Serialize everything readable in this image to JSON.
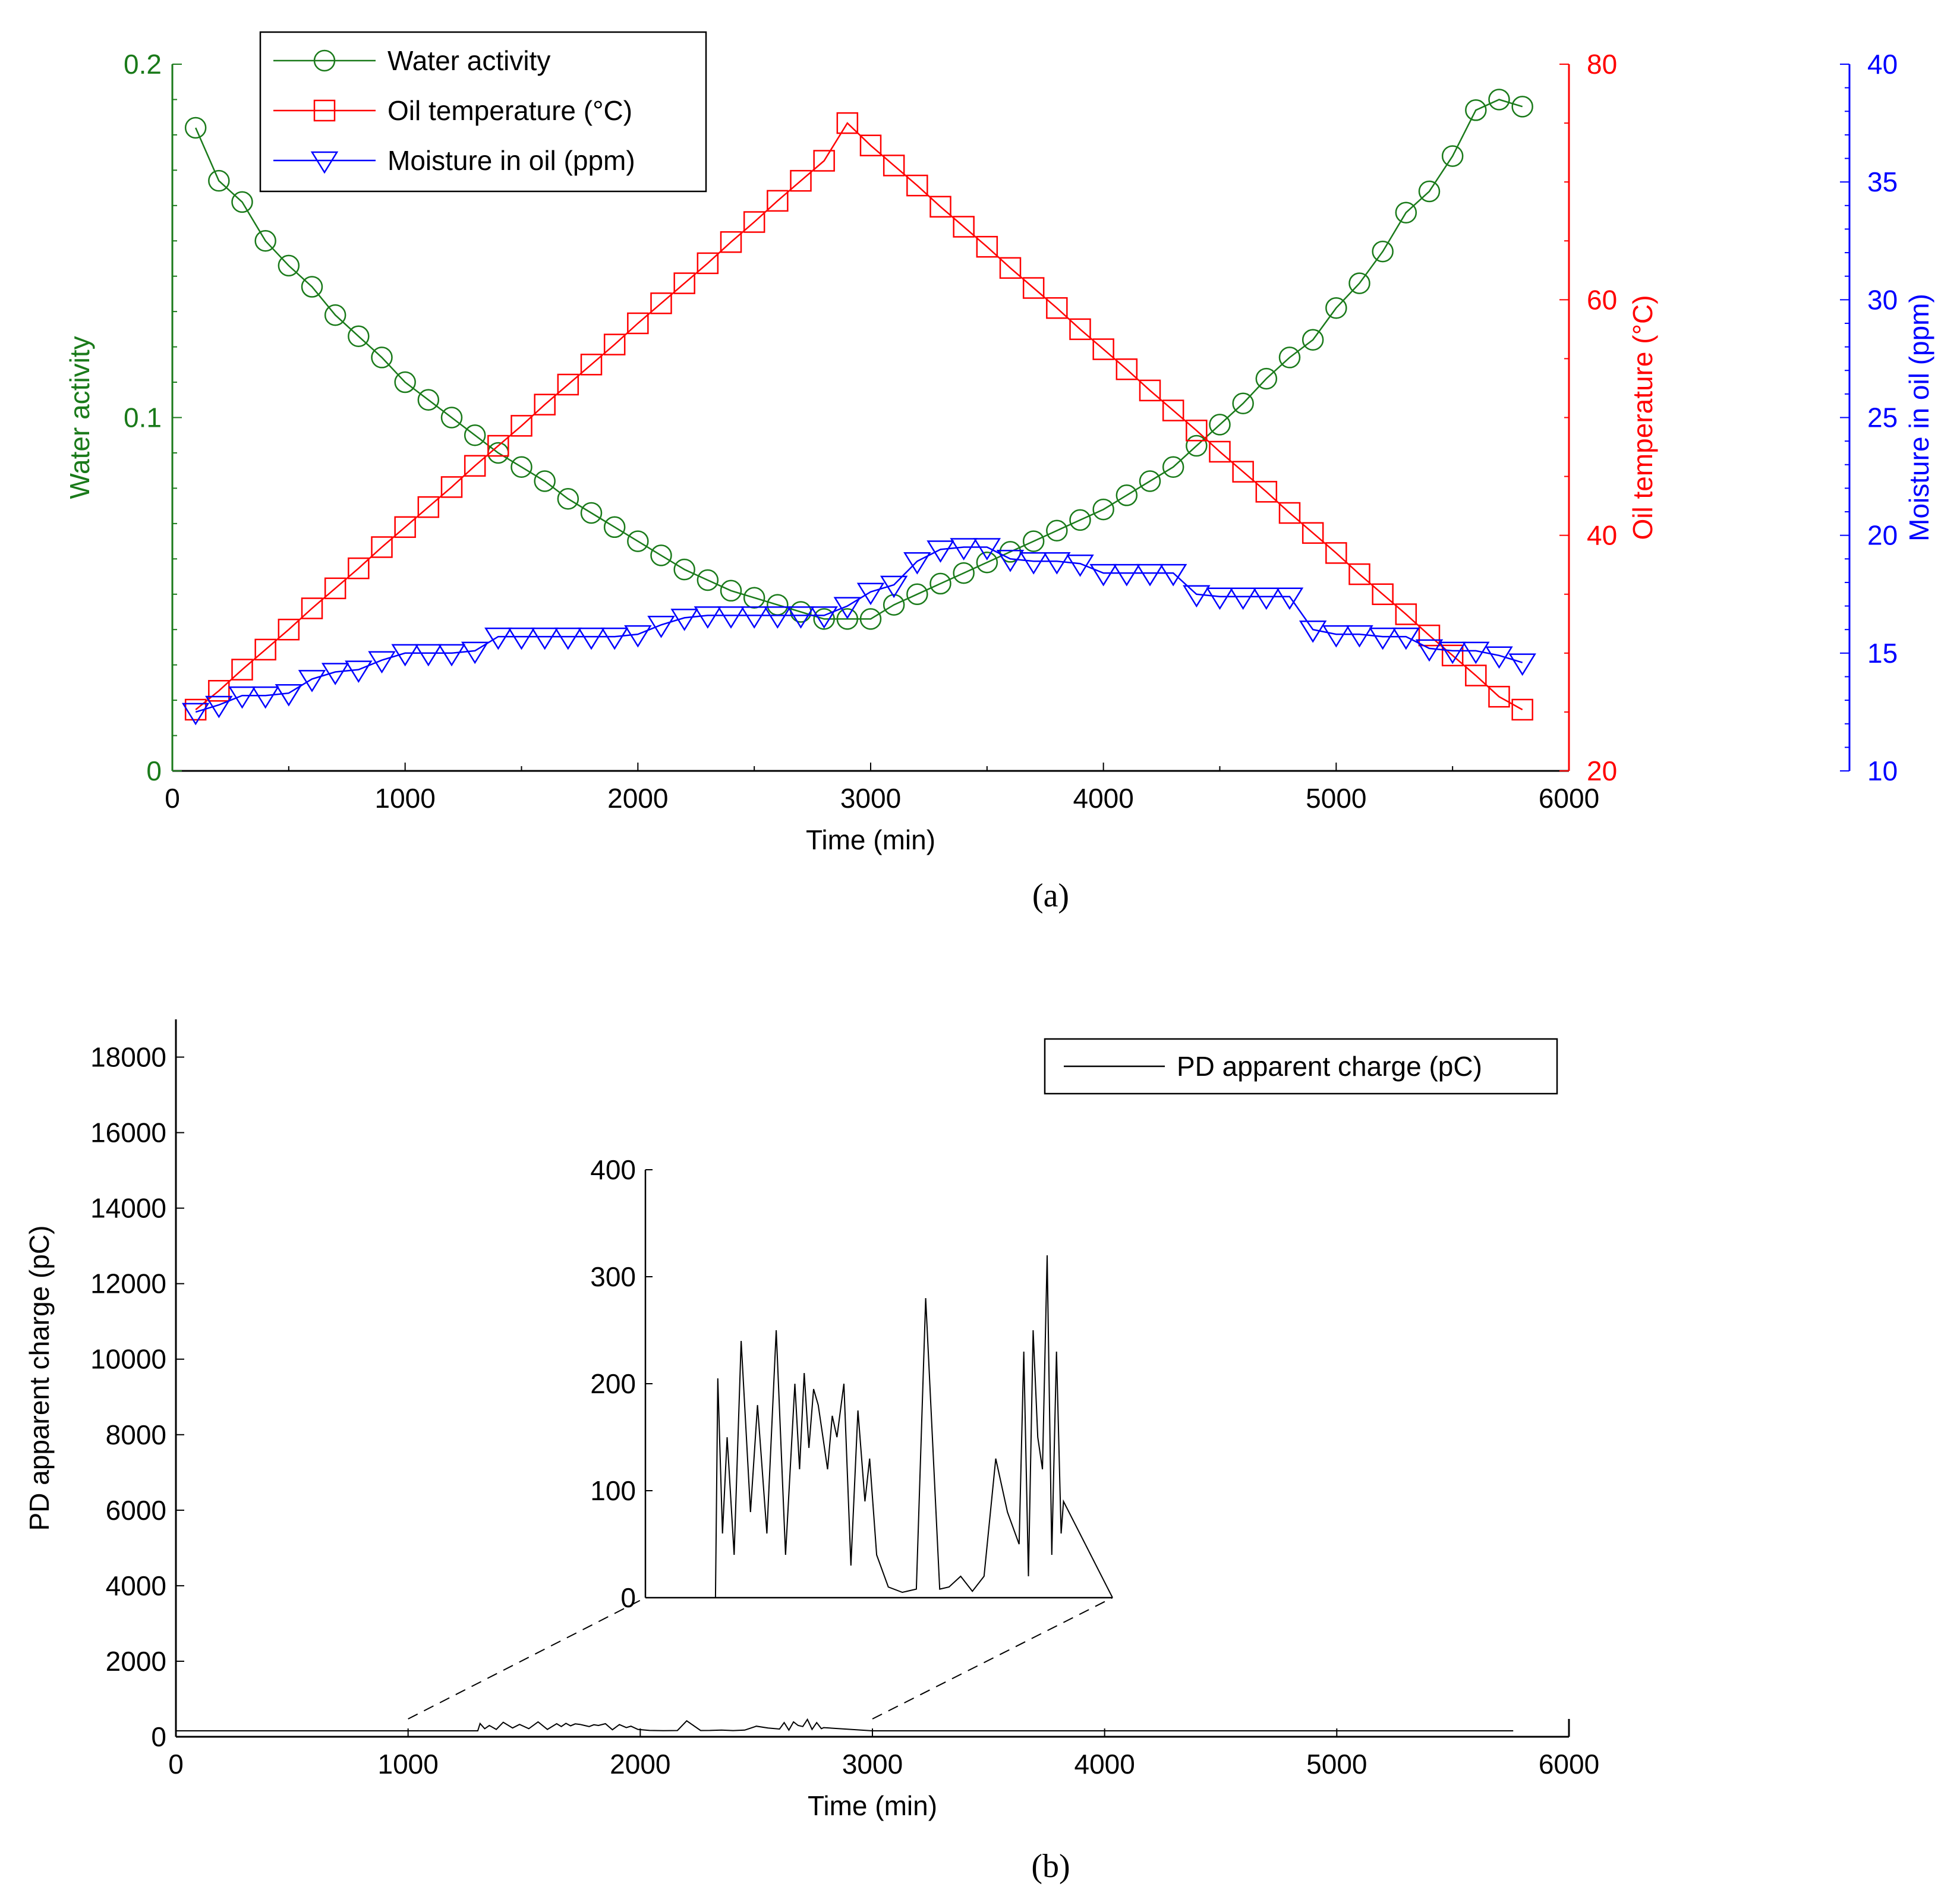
{
  "figure": {
    "panel_a_label": "(a)",
    "panel_b_label": "(b)"
  },
  "chart_data": [
    {
      "type": "line",
      "panel": "a",
      "xlabel": "Time (min)",
      "xlim": [
        0,
        6000
      ],
      "xticks": [
        "0",
        "1000",
        "2000",
        "3000",
        "4000",
        "5000",
        "6000"
      ],
      "axes": {
        "left": {
          "label": "Water activity",
          "lim": [
            0,
            0.2
          ],
          "ticks": [
            "0",
            "0.1",
            "0.2"
          ],
          "color": "#1a7a1a"
        },
        "right1": {
          "label": "Oil temperature (°C)",
          "lim": [
            20,
            80
          ],
          "ticks": [
            "20",
            "40",
            "60",
            "80"
          ],
          "color": "#ff0000"
        },
        "right2": {
          "label": "Moisture in oil (ppm)",
          "lim": [
            10,
            40
          ],
          "ticks": [
            "10",
            "15",
            "20",
            "25",
            "30",
            "35",
            "40"
          ],
          "color": "#0000ff"
        }
      },
      "legend": {
        "position": "top-left",
        "entries": [
          "Water activity",
          "Oil temperature (°C)",
          "Moisture in oil (ppm)"
        ]
      },
      "x": [
        100,
        200,
        300,
        400,
        500,
        600,
        700,
        800,
        900,
        1000,
        1100,
        1200,
        1300,
        1400,
        1500,
        1600,
        1700,
        1800,
        1900,
        2000,
        2100,
        2200,
        2300,
        2400,
        2500,
        2600,
        2700,
        2800,
        2900,
        3000,
        3100,
        3200,
        3300,
        3400,
        3500,
        3600,
        3700,
        3800,
        3900,
        4000,
        4100,
        4200,
        4300,
        4400,
        4500,
        4600,
        4700,
        4800,
        4900,
        5000,
        5100,
        5200,
        5300,
        5400,
        5500,
        5600,
        5700,
        5800
      ],
      "series": [
        {
          "name": "Water activity",
          "axis": "left",
          "color": "#1a7a1a",
          "marker": "circle",
          "values": [
            0.182,
            0.167,
            0.161,
            0.15,
            0.143,
            0.137,
            0.129,
            0.123,
            0.117,
            0.11,
            0.105,
            0.1,
            0.095,
            0.09,
            0.086,
            0.082,
            0.077,
            0.073,
            0.069,
            0.065,
            0.061,
            0.057,
            0.054,
            0.051,
            0.049,
            0.047,
            0.045,
            0.043,
            0.043,
            0.043,
            0.047,
            0.05,
            0.053,
            0.056,
            0.059,
            0.062,
            0.065,
            0.068,
            0.071,
            0.074,
            0.078,
            0.082,
            0.086,
            0.092,
            0.098,
            0.104,
            0.111,
            0.117,
            0.122,
            0.131,
            0.138,
            0.147,
            0.158,
            0.164,
            0.174,
            0.187,
            0.19,
            0.188
          ]
        },
        {
          "name": "Oil temperature (°C)",
          "axis": "right1",
          "color": "#ff0000",
          "marker": "square",
          "values": [
            25.2,
            26.8,
            28.6,
            30.3,
            32.0,
            33.8,
            35.5,
            37.2,
            39.0,
            40.7,
            42.4,
            44.1,
            45.9,
            47.6,
            49.3,
            51.1,
            52.8,
            54.5,
            56.2,
            58.0,
            59.7,
            61.4,
            63.1,
            64.9,
            66.6,
            68.4,
            70.1,
            71.8,
            75.0,
            73.1,
            71.4,
            69.7,
            67.9,
            66.2,
            64.5,
            62.7,
            61.0,
            59.3,
            57.5,
            55.8,
            54.1,
            52.3,
            50.6,
            48.9,
            47.1,
            45.4,
            43.7,
            41.9,
            40.2,
            38.5,
            36.7,
            35.0,
            33.3,
            31.5,
            29.8,
            28.1,
            26.3,
            25.2
          ]
        },
        {
          "name": "Moisture in oil (ppm)",
          "axis": "right2",
          "color": "#0000ff",
          "marker": "triangle-down",
          "values": [
            12.5,
            12.8,
            13.2,
            13.2,
            13.3,
            13.9,
            14.2,
            14.3,
            14.7,
            15.0,
            15.0,
            15.0,
            15.1,
            15.7,
            15.7,
            15.7,
            15.7,
            15.7,
            15.7,
            15.8,
            16.2,
            16.5,
            16.6,
            16.6,
            16.6,
            16.6,
            16.6,
            16.6,
            17.0,
            17.6,
            17.9,
            18.9,
            19.4,
            19.5,
            19.5,
            19.0,
            18.9,
            18.9,
            18.8,
            18.4,
            18.4,
            18.4,
            18.4,
            17.5,
            17.4,
            17.4,
            17.4,
            17.4,
            16.0,
            15.8,
            15.8,
            15.7,
            15.7,
            15.2,
            15.1,
            15.1,
            14.9,
            14.6
          ]
        }
      ]
    },
    {
      "type": "line",
      "panel": "b",
      "xlabel": "Time (min)",
      "ylabel": "PD apparent charge (pC)",
      "xlim": [
        0,
        6000
      ],
      "ylim": [
        0,
        19000
      ],
      "xticks": [
        "0",
        "1000",
        "2000",
        "3000",
        "4000",
        "5000",
        "6000"
      ],
      "yticks": [
        "0",
        "2000",
        "4000",
        "6000",
        "8000",
        "10000",
        "12000",
        "14000",
        "16000",
        "18000"
      ],
      "legend": {
        "position": "top-right",
        "entries": [
          "PD apparent charge (pC)"
        ]
      },
      "series": [
        {
          "name": "PD apparent charge (pC)",
          "color": "#000000",
          "x": [
            0,
            1000,
            1300,
            1310,
            1330,
            1350,
            1380,
            1410,
            1450,
            1480,
            1520,
            1560,
            1600,
            1640,
            1660,
            1680,
            1700,
            1720,
            1740,
            1760,
            1780,
            1800,
            1820,
            1850,
            1880,
            1910,
            1940,
            1960,
            1990,
            2040,
            2100,
            2160,
            2200,
            2260,
            2300,
            2350,
            2400,
            2450,
            2500,
            2550,
            2600,
            2620,
            2640,
            2660,
            2680,
            2700,
            2720,
            2740,
            2760,
            2780,
            2790,
            3000,
            4000,
            5760
          ],
          "values": [
            0,
            0,
            0,
            205,
            60,
            150,
            40,
            240,
            80,
            180,
            60,
            250,
            40,
            200,
            120,
            210,
            140,
            195,
            180,
            150,
            120,
            170,
            150,
            200,
            30,
            175,
            90,
            130,
            40,
            10,
            5,
            8,
            280,
            8,
            10,
            20,
            6,
            20,
            130,
            80,
            50,
            230,
            20,
            250,
            150,
            120,
            320,
            40,
            230,
            60,
            90,
            0,
            0,
            0
          ]
        }
      ],
      "inset": {
        "xlim": [
          1000,
          3000
        ],
        "ylim": [
          0,
          400
        ],
        "yticks": [
          "0",
          "100",
          "200",
          "300",
          "400"
        ]
      }
    }
  ]
}
